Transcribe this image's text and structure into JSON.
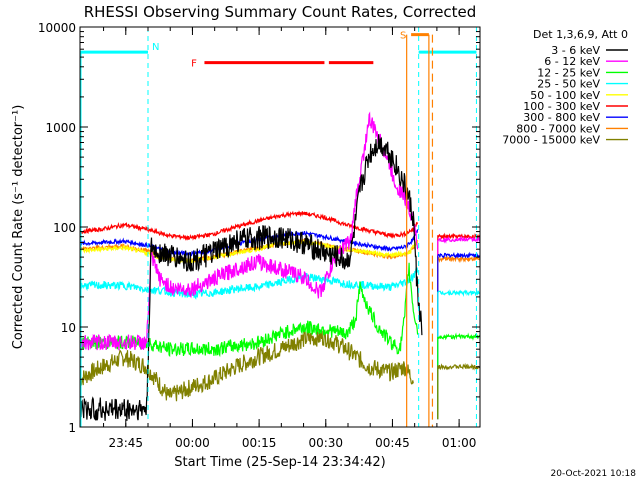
{
  "chart_data": {
    "type": "line",
    "title": "RHESSI Observing Summary Count Rates, Corrected",
    "xlabel": "Start Time (25-Sep-14 23:34:42)",
    "ylabel": "Corrected Count Rate (s⁻¹ detector⁻¹)",
    "y_scale": "log",
    "ylim": [
      1,
      10000
    ],
    "xlim_minutes_from_start": [
      0,
      90
    ],
    "xticks": [
      {
        "label": "23:45",
        "m": 10.3
      },
      {
        "label": "00:00",
        "m": 25.3
      },
      {
        "label": "00:15",
        "m": 40.3
      },
      {
        "label": "00:30",
        "m": 55.3
      },
      {
        "label": "00:45",
        "m": 70.3
      },
      {
        "label": "01:00",
        "m": 85.3
      }
    ],
    "yticks": [
      {
        "label": "1",
        "v": 1
      },
      {
        "label": "10",
        "v": 10
      },
      {
        "label": "100",
        "v": 100
      },
      {
        "label": "1000",
        "v": 1000
      },
      {
        "label": "10000",
        "v": 10000
      }
    ],
    "legend_title": "Det 1,3,6,9, Att 0",
    "legend_position": "right",
    "series": [
      {
        "name": "3 - 6 keV",
        "color": "#000000",
        "points": [
          [
            0,
            1.5
          ],
          [
            15,
            1.5
          ],
          [
            16,
            60
          ],
          [
            20,
            52
          ],
          [
            25,
            45
          ],
          [
            30,
            55
          ],
          [
            35,
            72
          ],
          [
            40,
            78
          ],
          [
            45,
            80
          ],
          [
            50,
            70
          ],
          [
            55,
            55
          ],
          [
            58,
            50
          ],
          [
            60,
            45
          ],
          [
            61,
            55
          ],
          [
            63,
            230
          ],
          [
            65,
            520
          ],
          [
            67,
            700
          ],
          [
            69,
            620
          ],
          [
            71,
            420
          ],
          [
            73,
            260
          ],
          [
            74,
            195
          ],
          [
            75,
            120
          ],
          [
            76,
            20
          ],
          [
            77,
            9
          ]
        ]
      },
      {
        "name": "6 - 12 keV",
        "color": "#ff00ff",
        "points": [
          [
            0,
            7
          ],
          [
            15,
            7
          ],
          [
            16,
            50
          ],
          [
            18,
            30
          ],
          [
            21,
            24
          ],
          [
            25,
            24
          ],
          [
            30,
            30
          ],
          [
            35,
            38
          ],
          [
            40,
            45
          ],
          [
            45,
            38
          ],
          [
            50,
            32
          ],
          [
            54,
            22
          ],
          [
            58,
            55
          ],
          [
            61,
            75
          ],
          [
            62,
            180
          ],
          [
            64,
            600
          ],
          [
            65,
            1200
          ],
          [
            67,
            820
          ],
          [
            69,
            500
          ],
          [
            71,
            270
          ],
          [
            73,
            200
          ],
          [
            75,
            120
          ],
          [
            76,
            60
          ]
        ]
      },
      {
        "name": "12 - 25 keV",
        "color": "#00ff00",
        "points": [
          [
            0,
            7
          ],
          [
            15,
            7
          ],
          [
            20,
            6
          ],
          [
            25,
            6
          ],
          [
            30,
            6
          ],
          [
            35,
            6.5
          ],
          [
            40,
            7
          ],
          [
            45,
            8.5
          ],
          [
            50,
            10
          ],
          [
            55,
            9.5
          ],
          [
            60,
            8.5
          ],
          [
            62,
            12
          ],
          [
            63,
            25
          ],
          [
            65,
            15
          ],
          [
            67,
            10
          ],
          [
            70,
            7
          ],
          [
            72,
            6
          ],
          [
            73,
            12
          ],
          [
            74,
            40
          ],
          [
            75,
            15
          ],
          [
            76,
            9
          ]
        ]
      },
      {
        "name": "25 - 50 keV",
        "color": "#00ffff",
        "points": [
          [
            0,
            26
          ],
          [
            10,
            26
          ],
          [
            15,
            24
          ],
          [
            25,
            21
          ],
          [
            30,
            22
          ],
          [
            35,
            24
          ],
          [
            40,
            25
          ],
          [
            45,
            28
          ],
          [
            50,
            32
          ],
          [
            55,
            30
          ],
          [
            60,
            27
          ],
          [
            65,
            26
          ],
          [
            70,
            25
          ],
          [
            73,
            28
          ],
          [
            75,
            32
          ],
          [
            76,
            38
          ]
        ]
      },
      {
        "name": "50 - 100 keV",
        "color": "#ffff00",
        "points": [
          [
            0,
            58
          ],
          [
            10,
            62
          ],
          [
            15,
            55
          ],
          [
            20,
            47
          ],
          [
            25,
            46
          ],
          [
            30,
            50
          ],
          [
            35,
            55
          ],
          [
            40,
            60
          ],
          [
            45,
            68
          ],
          [
            50,
            72
          ],
          [
            55,
            65
          ],
          [
            60,
            60
          ],
          [
            65,
            56
          ],
          [
            70,
            52
          ],
          [
            74,
            55
          ],
          [
            76,
            72
          ]
        ]
      },
      {
        "name": "100 - 300 keV",
        "color": "#ff0000",
        "points": [
          [
            0,
            90
          ],
          [
            5,
            95
          ],
          [
            10,
            105
          ],
          [
            15,
            95
          ],
          [
            20,
            82
          ],
          [
            25,
            78
          ],
          [
            30,
            85
          ],
          [
            35,
            100
          ],
          [
            40,
            115
          ],
          [
            45,
            130
          ],
          [
            50,
            138
          ],
          [
            55,
            125
          ],
          [
            60,
            105
          ],
          [
            65,
            92
          ],
          [
            70,
            82
          ],
          [
            73,
            85
          ],
          [
            75,
            95
          ],
          [
            76,
            115
          ]
        ]
      },
      {
        "name": "300 - 800 keV",
        "color": "#0000ff",
        "points": [
          [
            0,
            68
          ],
          [
            5,
            70
          ],
          [
            10,
            72
          ],
          [
            15,
            66
          ],
          [
            20,
            56
          ],
          [
            25,
            54
          ],
          [
            30,
            58
          ],
          [
            35,
            68
          ],
          [
            40,
            75
          ],
          [
            45,
            82
          ],
          [
            50,
            88
          ],
          [
            55,
            80
          ],
          [
            60,
            72
          ],
          [
            65,
            65
          ],
          [
            70,
            60
          ],
          [
            73,
            63
          ],
          [
            75,
            75
          ],
          [
            76,
            92
          ]
        ]
      },
      {
        "name": "800 - 7000 keV",
        "color": "#ff8000",
        "points": [
          [
            0,
            60
          ],
          [
            10,
            64
          ],
          [
            15,
            58
          ],
          [
            20,
            48
          ],
          [
            25,
            46
          ],
          [
            30,
            50
          ],
          [
            35,
            56
          ],
          [
            40,
            62
          ],
          [
            45,
            68
          ],
          [
            50,
            72
          ],
          [
            55,
            66
          ],
          [
            60,
            60
          ],
          [
            65,
            55
          ],
          [
            70,
            50
          ],
          [
            74,
            55
          ],
          [
            76,
            72
          ]
        ]
      },
      {
        "name": "7000 - 15000 keV",
        "color": "#808000",
        "points": [
          [
            0,
            3
          ],
          [
            5,
            4
          ],
          [
            10,
            5
          ],
          [
            15,
            4
          ],
          [
            20,
            2
          ],
          [
            25,
            2.5
          ],
          [
            30,
            3
          ],
          [
            35,
            4
          ],
          [
            40,
            5
          ],
          [
            45,
            6
          ],
          [
            50,
            7.5
          ],
          [
            55,
            8
          ],
          [
            60,
            6
          ],
          [
            65,
            4
          ],
          [
            70,
            3.5
          ],
          [
            73,
            4
          ],
          [
            75,
            3
          ]
        ]
      }
    ],
    "post_gap_series": [
      {
        "name": "100 - 300 keV",
        "color": "#ff0000",
        "start": 80.5,
        "end": 90,
        "value": 80
      },
      {
        "name": "6 - 12 keV",
        "color": "#ff00ff",
        "start": 80.5,
        "end": 90,
        "value": 75
      },
      {
        "name": "800 - 7000 keV",
        "color": "#ff8000",
        "start": 80.5,
        "end": 90,
        "value": 48
      },
      {
        "name": "300 - 800 keV",
        "color": "#0000ff",
        "start": 80.5,
        "end": 90,
        "value": 52
      },
      {
        "name": "25 - 50 keV",
        "color": "#00ffff",
        "start": 80.5,
        "end": 90,
        "value": 22
      },
      {
        "name": "12 - 25 keV",
        "color": "#00ff00",
        "start": 80.5,
        "end": 90,
        "value": 8
      },
      {
        "name": "7000 - 15000 keV",
        "color": "#808000",
        "start": 80.5,
        "end": 90,
        "value": 4
      }
    ],
    "annotations": {
      "night_label": "N",
      "flare_label": "F",
      "saa_label": "S",
      "night_color": "#00ffff",
      "flare_color": "#ff0000",
      "saa_color": "#ff8000",
      "night_bars": [
        [
          0,
          15.3
        ],
        [
          76.2,
          89.2
        ]
      ],
      "night_bar_value": 5600,
      "night_lines": [
        15.3,
        76.2,
        89.2
      ],
      "flare_bars": [
        [
          28,
          55
        ],
        [
          56,
          66
        ]
      ],
      "flare_bar_value": 4400,
      "saa_solid_lines": [
        73.5,
        78.5
      ],
      "saa_dashed_line": 79.3,
      "saa_bar": [
        74.5,
        78.5
      ],
      "saa_bar_value": 8400
    }
  },
  "footer": {
    "date_stamp": "20-Oct-2021 10:18"
  }
}
